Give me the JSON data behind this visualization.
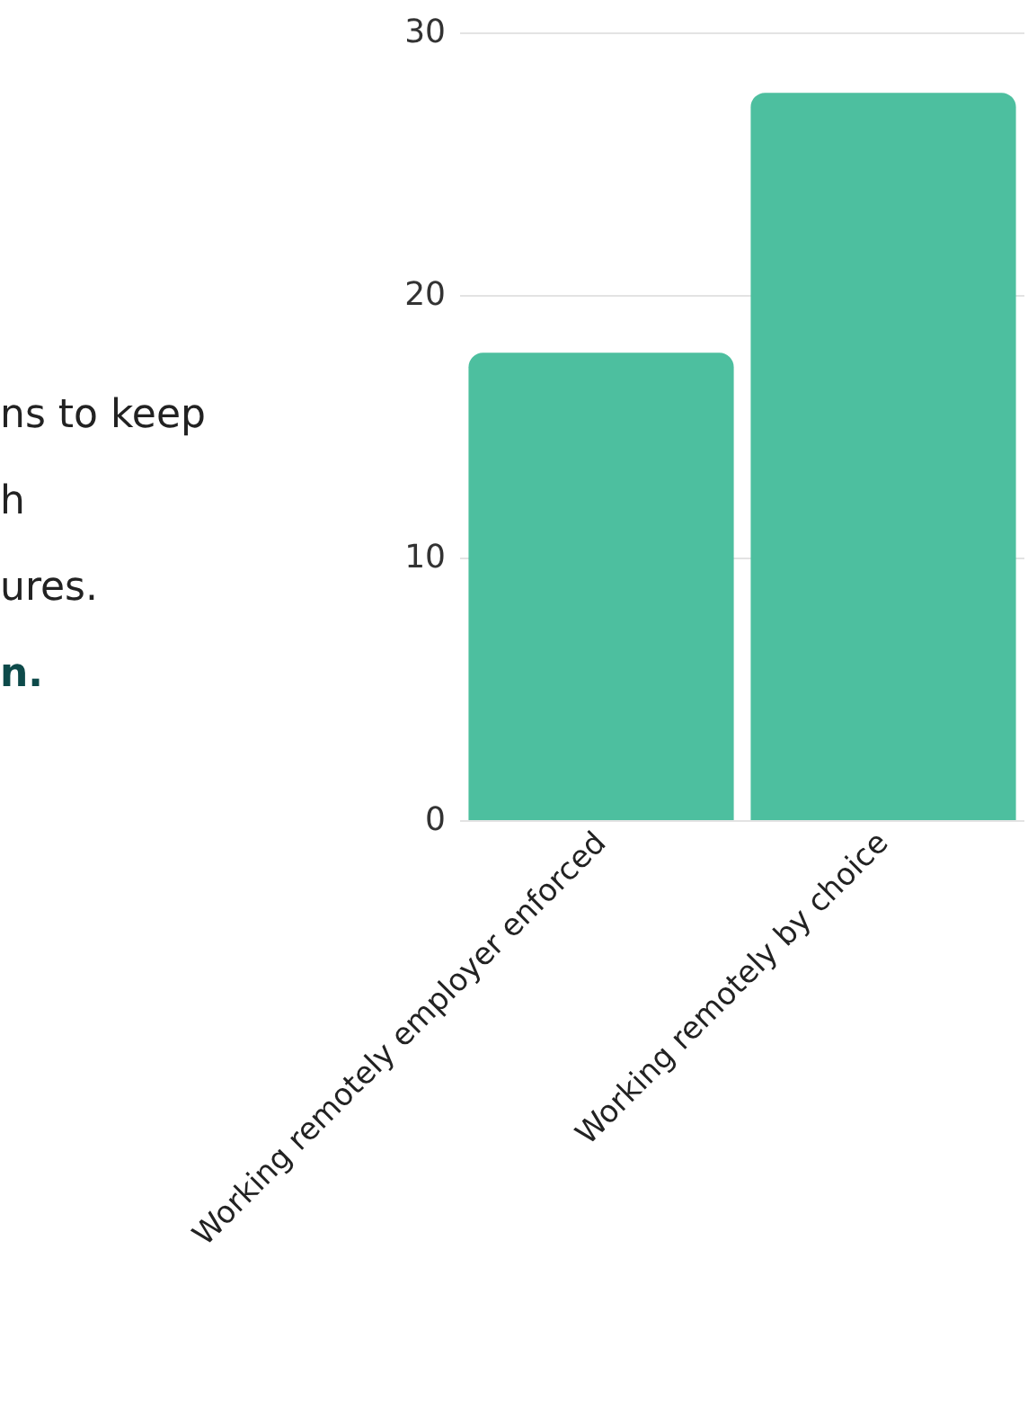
{
  "chart_data": {
    "type": "bar",
    "categories": [
      "Working remotely employer enforced",
      "Working remotely by choice"
    ],
    "values": [
      17.8,
      27.7
    ],
    "color": "#4dbf9f",
    "ylim": [
      0,
      30
    ],
    "yticks": [
      0,
      10,
      20,
      30
    ],
    "grid": "y",
    "annotations": [
      "ns to keep",
      "h",
      "ures.",
      "n."
    ]
  }
}
